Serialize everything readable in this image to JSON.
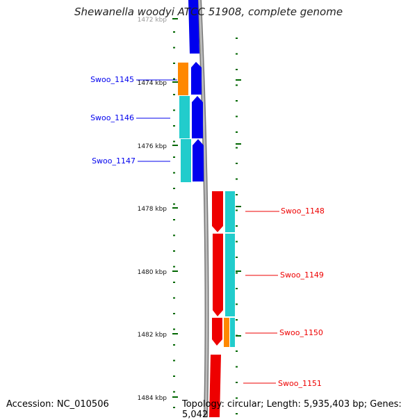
{
  "title": "Shewanella woodyi ATCC 51908, complete genome",
  "accession": "Accession: NC_010506",
  "topology": "Topology: circular; Length: 5,935,403 bp; Genes: 5,042",
  "ticks": [
    "1472 kbp",
    "1474 kbp",
    "1476 kbp",
    "1478 kbp",
    "1480 kbp",
    "1482 kbp",
    "1484 kbp"
  ],
  "colors": {
    "forward_strand": "#0000ee",
    "reverse_strand": "#ee0000",
    "cds_cyan": "#22cccc",
    "cds_orange": "#ff8800",
    "backbone": "#999999",
    "tick": "#006600"
  },
  "genes": [
    {
      "name": "Swoo_1145",
      "strand": "forward"
    },
    {
      "name": "Swoo_1146",
      "strand": "forward"
    },
    {
      "name": "Swoo_1147",
      "strand": "forward"
    },
    {
      "name": "Swoo_1148",
      "strand": "reverse"
    },
    {
      "name": "Swoo_1149",
      "strand": "reverse"
    },
    {
      "name": "Swoo_1150",
      "strand": "reverse"
    },
    {
      "name": "Swoo_1151",
      "strand": "reverse"
    }
  ]
}
